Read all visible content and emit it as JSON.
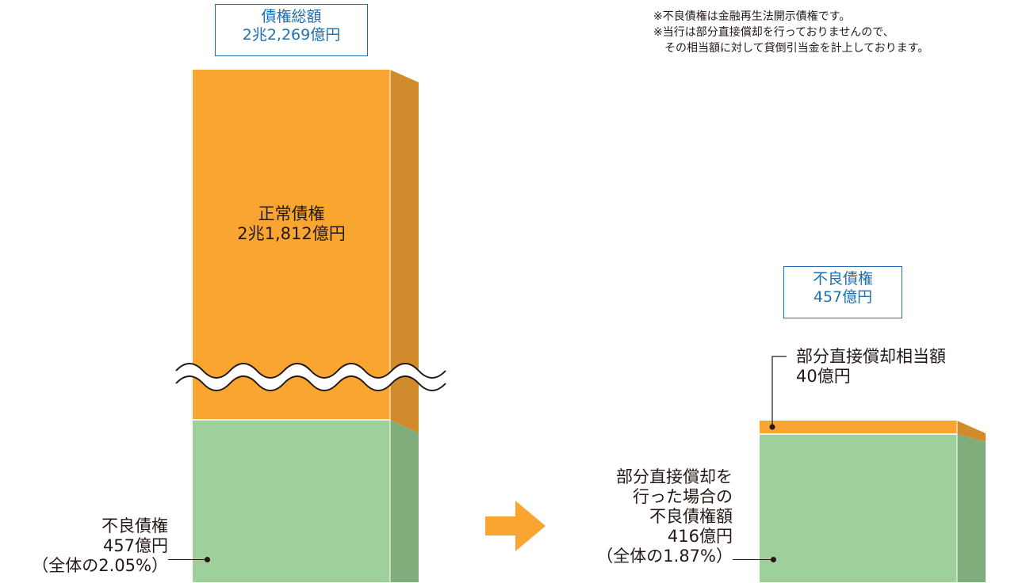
{
  "notes": [
    "※不良債権は金融再生法開示債権です。",
    "※当行は部分直接償却を行っておりませんので、",
    "　その相当額に対して貸倒引当金を計上しております。"
  ],
  "colors": {
    "orange": "#f8a631",
    "orange_side": "#d18a2c",
    "green": "#9dd09a",
    "green_side": "#7fae7c",
    "box_border": "#1f6fb2",
    "arrow": "#f8a631"
  },
  "left_bar": {
    "total_box": {
      "title": "債権総額",
      "value": "2兆2,269億円"
    },
    "normal": {
      "title": "正常債権",
      "value": "2兆1,812億円"
    },
    "bad": {
      "title": "不良債権",
      "value": "457億円",
      "share": "（全体の2.05%）"
    },
    "break_mark": "wave-break"
  },
  "right_bar": {
    "bad_box": {
      "title": "不良債権",
      "value": "457億円"
    },
    "writeoff": {
      "title": "部分直接償却相当額",
      "value": "40億円"
    },
    "after": {
      "lines": [
        "部分直接償却を",
        "行った場合の",
        "不良債権額"
      ],
      "value": "416億円",
      "share": "（全体の1.87%）"
    }
  },
  "arrow_icon": "right-arrow-icon"
}
